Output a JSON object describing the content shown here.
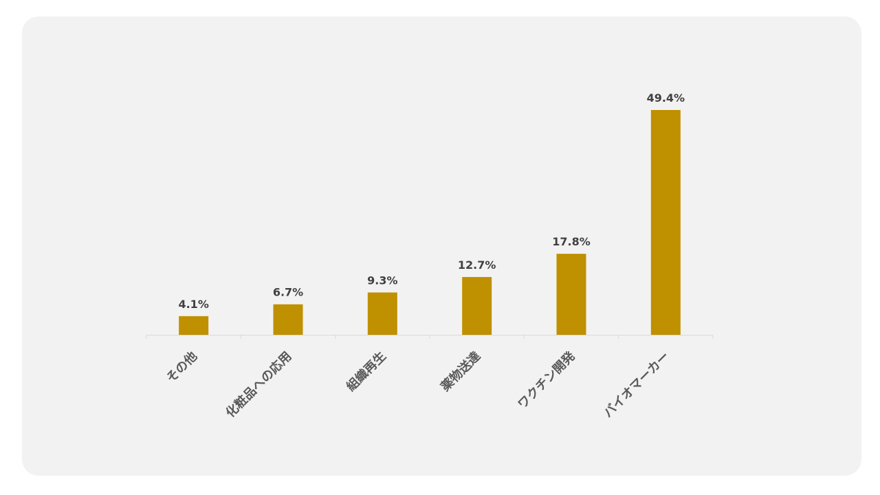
{
  "chart_data": {
    "type": "bar",
    "categories": [
      "その他",
      "化粧品への応用",
      "組織再生",
      "薬物送達",
      "ワクチン開発",
      "バイオマーカー"
    ],
    "values": [
      4.1,
      6.7,
      9.3,
      12.7,
      17.8,
      49.4
    ],
    "data_labels": [
      "4.1%",
      "6.7%",
      "9.3%",
      "12.7%",
      "17.8%",
      "49.4%"
    ],
    "ylim": [
      0,
      50
    ],
    "grid": false,
    "legend": "none",
    "bar_color": "#bf9000",
    "axis_color": "#d9d9d9"
  }
}
